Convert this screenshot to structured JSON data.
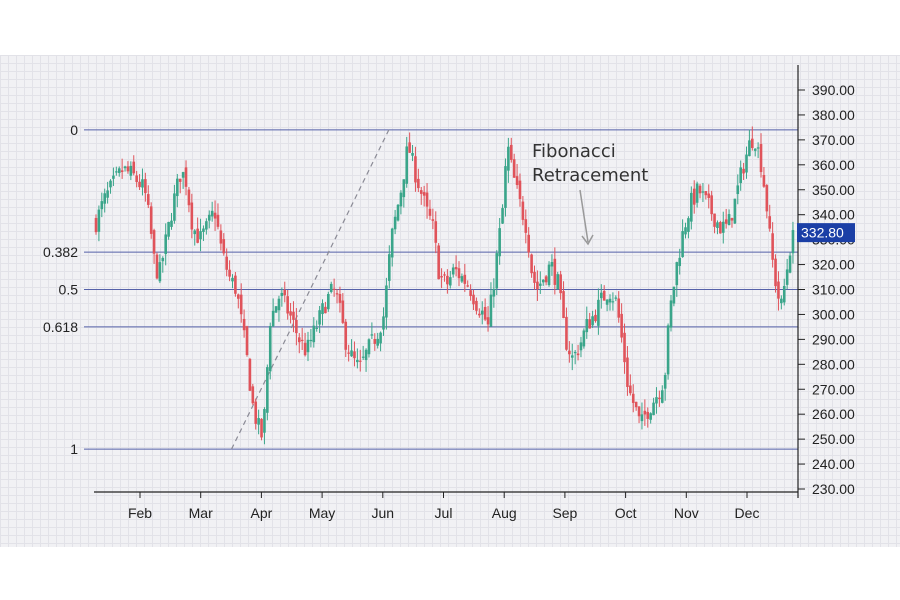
{
  "chart_data": {
    "type": "candlestick",
    "title": "",
    "xlabel": "",
    "ylabel": "",
    "ylim": [
      225,
      395
    ],
    "x_ticks": [
      "Feb",
      "Mar",
      "Apr",
      "May",
      "Jun",
      "Jul",
      "Aug",
      "Sep",
      "Oct",
      "Nov",
      "Dec"
    ],
    "y_ticks": [
      "230.00",
      "240.00",
      "250.00",
      "260.00",
      "270.00",
      "280.00",
      "290.00",
      "300.00",
      "310.00",
      "320.00",
      "330.00",
      "340.00",
      "350.00",
      "360.00",
      "370.00",
      "380.00",
      "390.00"
    ],
    "y_tick_values": [
      230,
      240,
      250,
      260,
      270,
      280,
      290,
      300,
      310,
      320,
      330,
      340,
      350,
      360,
      370,
      380,
      390
    ],
    "current_price": {
      "label": "332.80",
      "value": 332.8
    },
    "fib_levels": [
      {
        "label": "0",
        "value": 374
      },
      {
        "label": "0.382",
        "value": 325
      },
      {
        "label": "0.5",
        "value": 310
      },
      {
        "label": "0.618",
        "value": 295
      },
      {
        "label": "1",
        "value": 246
      }
    ],
    "annotation": {
      "line1": "Fibonacci",
      "line2": "Retracement"
    },
    "trendline": {
      "from": {
        "x": 2.8,
        "y": 246
      },
      "to": {
        "x": 6.05,
        "y": 374
      }
    },
    "price_path": [
      [
        0.0,
        337
      ],
      [
        0.15,
        345
      ],
      [
        0.35,
        352
      ],
      [
        0.55,
        358
      ],
      [
        0.75,
        356
      ],
      [
        1.0,
        350
      ],
      [
        1.1,
        338
      ],
      [
        1.2,
        322
      ],
      [
        1.3,
        315
      ],
      [
        1.45,
        330
      ],
      [
        1.6,
        345
      ],
      [
        1.75,
        357
      ],
      [
        1.85,
        355
      ],
      [
        2.0,
        335
      ],
      [
        2.15,
        330
      ],
      [
        2.3,
        335
      ],
      [
        2.45,
        342
      ],
      [
        2.6,
        325
      ],
      [
        2.75,
        315
      ],
      [
        2.9,
        310
      ],
      [
        3.1,
        285
      ],
      [
        3.25,
        262
      ],
      [
        3.35,
        255
      ],
      [
        3.45,
        250
      ],
      [
        3.6,
        298
      ],
      [
        3.8,
        308
      ],
      [
        4.0,
        300
      ],
      [
        4.2,
        290
      ],
      [
        4.35,
        285
      ],
      [
        4.55,
        295
      ],
      [
        4.75,
        305
      ],
      [
        4.9,
        310
      ],
      [
        5.0,
        305
      ],
      [
        5.15,
        290
      ],
      [
        5.3,
        282
      ],
      [
        5.45,
        278
      ],
      [
        5.6,
        285
      ],
      [
        5.8,
        292
      ],
      [
        5.95,
        300
      ],
      [
        6.1,
        330
      ],
      [
        6.3,
        350
      ],
      [
        6.45,
        368
      ],
      [
        6.55,
        360
      ],
      [
        6.7,
        350
      ],
      [
        6.85,
        340
      ],
      [
        6.95,
        336
      ],
      [
        7.1,
        315
      ],
      [
        7.25,
        312
      ],
      [
        7.4,
        318
      ],
      [
        7.55,
        315
      ],
      [
        7.7,
        312
      ],
      [
        7.85,
        305
      ],
      [
        8.0,
        300
      ],
      [
        8.1,
        295
      ],
      [
        8.25,
        318
      ],
      [
        8.4,
        342
      ],
      [
        8.5,
        368
      ],
      [
        8.6,
        357
      ],
      [
        8.75,
        345
      ],
      [
        8.9,
        335
      ],
      [
        9.0,
        318
      ],
      [
        9.1,
        310
      ],
      [
        9.25,
        315
      ],
      [
        9.4,
        320
      ],
      [
        9.55,
        312
      ],
      [
        9.7,
        290
      ],
      [
        9.85,
        282
      ],
      [
        10.0,
        288
      ],
      [
        10.15,
        296
      ],
      [
        10.3,
        300
      ],
      [
        10.45,
        306
      ],
      [
        10.6,
        310
      ],
      [
        10.75,
        305
      ],
      [
        10.9,
        285
      ],
      [
        11.0,
        270
      ],
      [
        11.15,
        262
      ],
      [
        11.25,
        255
      ],
      [
        11.35,
        260
      ],
      [
        11.5,
        265
      ],
      [
        11.65,
        270
      ],
      [
        11.75,
        275
      ],
      [
        11.85,
        300
      ],
      [
        12.0,
        320
      ],
      [
        12.15,
        335
      ],
      [
        12.3,
        345
      ],
      [
        12.45,
        350
      ],
      [
        12.6,
        345
      ],
      [
        12.75,
        340
      ],
      [
        12.9,
        335
      ],
      [
        13.05,
        335
      ],
      [
        13.2,
        345
      ],
      [
        13.35,
        358
      ],
      [
        13.5,
        368
      ],
      [
        13.6,
        372
      ],
      [
        13.75,
        360
      ],
      [
        13.85,
        345
      ],
      [
        13.95,
        325
      ],
      [
        14.05,
        312
      ],
      [
        14.15,
        302
      ],
      [
        14.25,
        315
      ],
      [
        14.35,
        328
      ],
      [
        14.45,
        333
      ]
    ]
  }
}
